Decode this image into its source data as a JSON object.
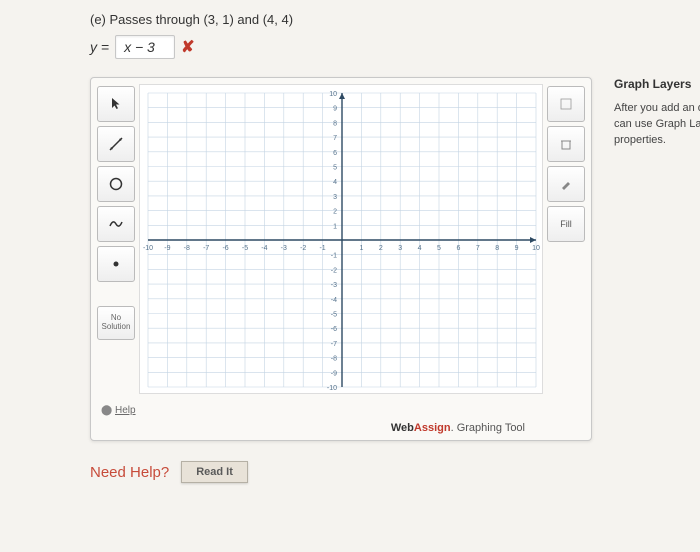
{
  "problem": {
    "part_label": "(e) Passes through (3, 1) and (4, 4)",
    "equation_prefix": "y =",
    "answer_value": "x − 3",
    "incorrect_marker": "✘"
  },
  "graph": {
    "type": "scatter",
    "xlim": [
      -10,
      10
    ],
    "ylim": [
      -10,
      10
    ],
    "xtick_step": 1,
    "ytick_step": 1,
    "x_ticks": [
      -10,
      -9,
      -8,
      -7,
      -6,
      -5,
      -4,
      -3,
      -2,
      -1,
      1,
      2,
      3,
      4,
      5,
      6,
      7,
      8,
      9,
      10
    ],
    "y_ticks": [
      -10,
      -9,
      -8,
      -7,
      -6,
      -5,
      -4,
      -3,
      -2,
      -1,
      1,
      2,
      3,
      4,
      5,
      6,
      7,
      8,
      9,
      10
    ],
    "background_color": "#ffffff",
    "grid_color": "#c4d4e3",
    "axis_color": "#2e4a63",
    "tick_label_color": "#55728c",
    "tick_fontsize": 7,
    "axis_width": 1.4,
    "grid_width": 0.6
  },
  "tools": {
    "pointer": "pointer",
    "line": "line",
    "circle": "circle",
    "freehand": "freehand",
    "point": "point",
    "no_solution_line1": "No",
    "no_solution_line2": "Solution"
  },
  "right_tools": {
    "clear": "",
    "delete": "",
    "color": "",
    "fill": "Fill"
  },
  "help_link": "Help",
  "brand": {
    "web": "Web",
    "assign": "Assign",
    "suffix": ". Graphing Tool"
  },
  "layers": {
    "title": "Graph Layers",
    "text_line1": "After you add an object to the",
    "text_line2": "can use Graph Layers to view",
    "text_line3": "properties."
  },
  "need_help": {
    "label": "Need Help?",
    "read_it": "Read It"
  }
}
